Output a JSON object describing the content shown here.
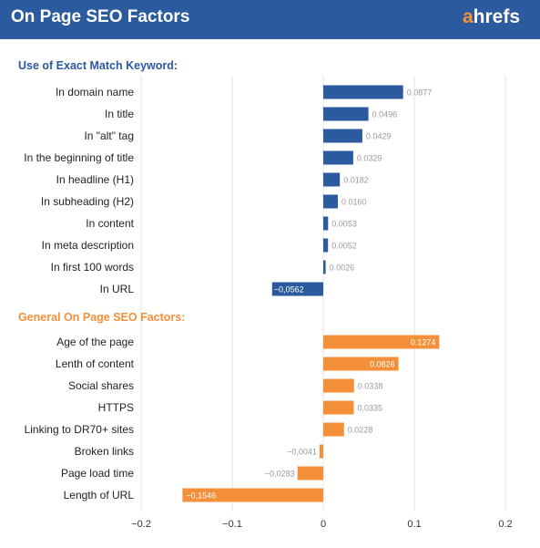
{
  "header": {
    "title": "On Page SEO Factors",
    "logo_first": "a",
    "logo_rest": "hrefs"
  },
  "colors": {
    "header_bg": "#2c5a9e",
    "blue": "#2c5a9e",
    "orange": "#f4903a",
    "value_text": "#9a9a9a",
    "grid": "#e6e6e6"
  },
  "chart_data": {
    "type": "bar",
    "orientation": "horizontal",
    "xlim": [
      -0.2,
      0.2
    ],
    "x_ticks": [
      "−0.2",
      "−0.1",
      "0",
      "0.1",
      "0.2"
    ],
    "grid": true,
    "groups": [
      {
        "name": "Use of Exact Match Keyword:",
        "color": "#2c5a9e",
        "items": [
          {
            "label": "In domain name",
            "value": 0.0877,
            "value_label": "0.0877"
          },
          {
            "label": "In title",
            "value": 0.0496,
            "value_label": "0.0496"
          },
          {
            "label": "In \"alt\" tag",
            "value": 0.0429,
            "value_label": "0.0429"
          },
          {
            "label": "In the beginning of title",
            "value": 0.0329,
            "value_label": "0.0329"
          },
          {
            "label": "In headline (H1)",
            "value": 0.0182,
            "value_label": "0.0182"
          },
          {
            "label": "In subheading (H2)",
            "value": 0.016,
            "value_label": "0.0160"
          },
          {
            "label": "In content",
            "value": 0.0053,
            "value_label": "0.0053"
          },
          {
            "label": "In meta description",
            "value": 0.0052,
            "value_label": "0.0052"
          },
          {
            "label": "In first 100 words",
            "value": 0.0026,
            "value_label": "0.0026"
          },
          {
            "label": "In URL",
            "value": -0.0562,
            "value_label": "−0,0562"
          }
        ]
      },
      {
        "name": "General On Page SEO Factors:",
        "color": "#f4903a",
        "items": [
          {
            "label": "Age of the page",
            "value": 0.1274,
            "value_label": "0.1274"
          },
          {
            "label": "Lenth of content",
            "value": 0.0826,
            "value_label": "0.0826"
          },
          {
            "label": "Social shares",
            "value": 0.0338,
            "value_label": "0.0338"
          },
          {
            "label": "HTTPS",
            "value": 0.0335,
            "value_label": "0.0335"
          },
          {
            "label": "Linking to DR70+ sites",
            "value": 0.0228,
            "value_label": "0.0228"
          },
          {
            "label": "Broken links",
            "value": -0.0041,
            "value_label": "−0,0041"
          },
          {
            "label": "Page load time",
            "value": -0.0283,
            "value_label": "−0,0283"
          },
          {
            "label": "Length of URL",
            "value": -0.1546,
            "value_label": "−0,1546"
          }
        ]
      }
    ]
  }
}
